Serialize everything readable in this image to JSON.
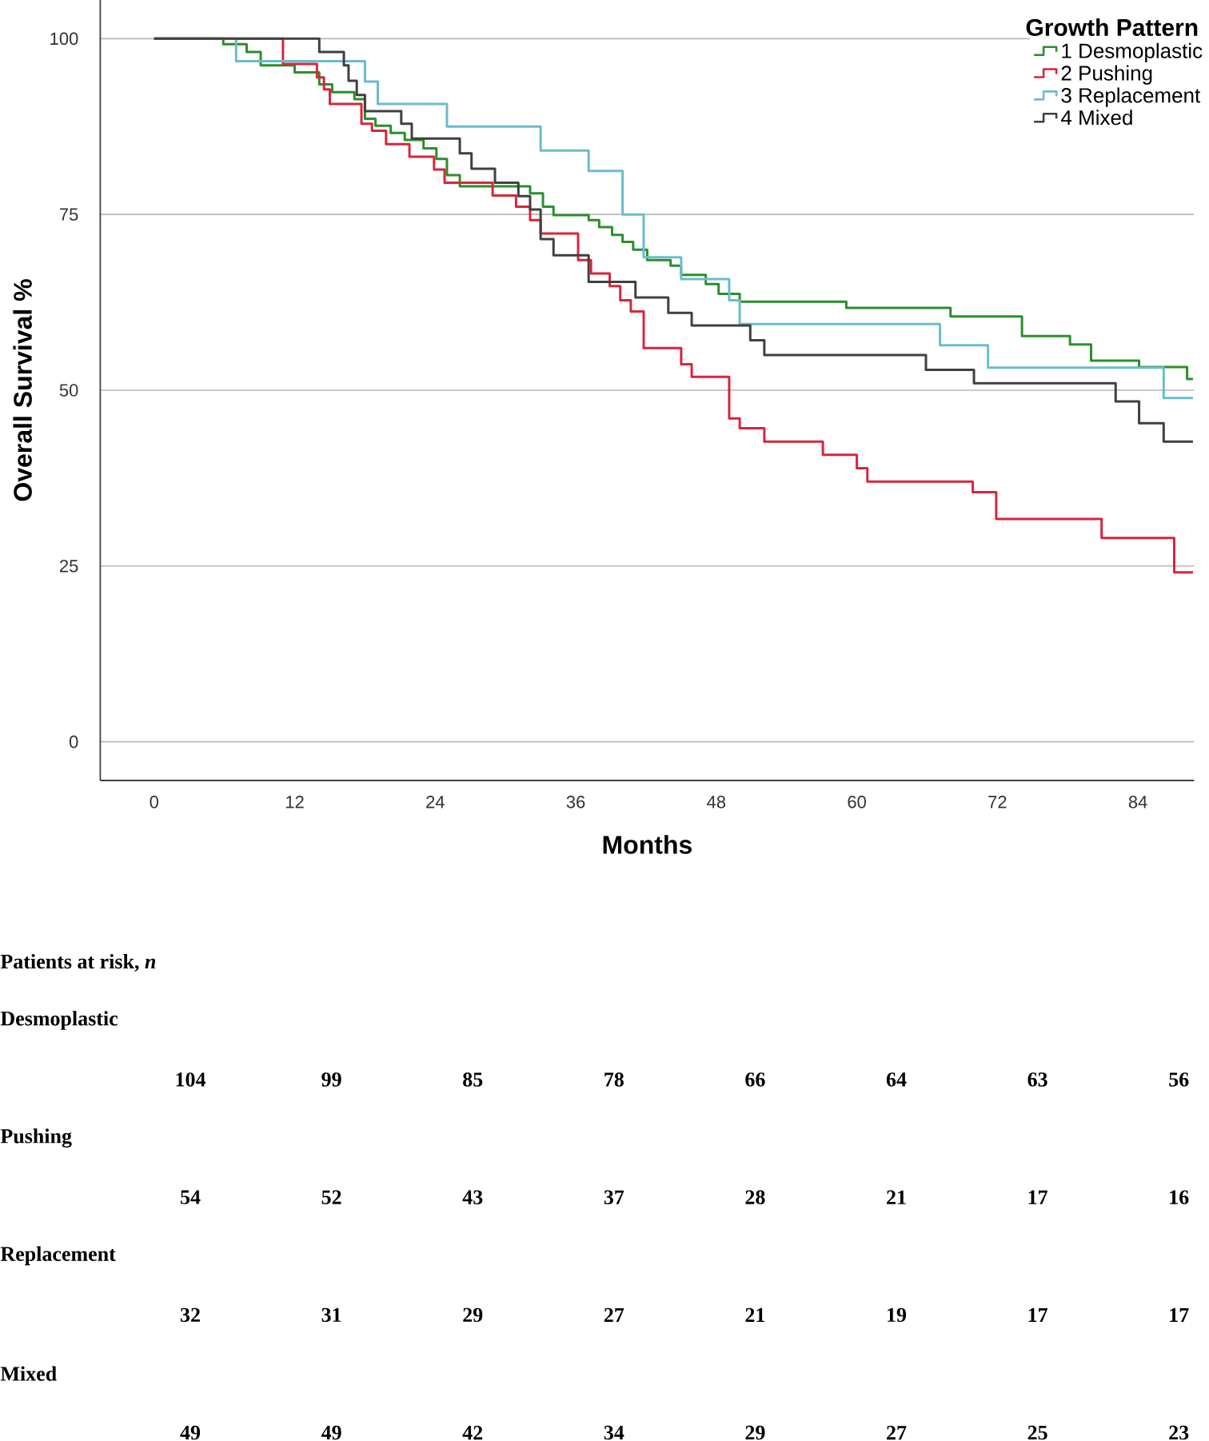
{
  "chart_data": {
    "type": "step",
    "xlabel": "Months",
    "ylabel": "Overall Survival %",
    "legend_title": "Growth Pattern",
    "legend": "top right",
    "grid": "y",
    "marker": "none",
    "line_style": "solid",
    "xlim": [
      -4.6,
      88.8
    ],
    "ylim": [
      -5.5,
      105.5
    ],
    "xticks": [
      0,
      12,
      24,
      36,
      48,
      60,
      72,
      84
    ],
    "yticks": [
      0,
      25,
      50,
      75,
      100
    ],
    "series": [
      {
        "name": "1 Desmoplastic",
        "color": "#2a8f2a",
        "x": [
          0,
          5.9,
          7.9,
          9.1,
          12.0,
          14.1,
          15.2,
          17.1,
          18.0,
          18.9,
          20.2,
          21.4,
          23.0,
          24.1,
          25.0,
          26.1,
          32.1,
          33.2,
          34.1,
          37.1,
          38.0,
          39.1,
          40.0,
          40.9,
          42.1,
          44.1,
          45.0,
          47.1,
          48.2,
          50.0,
          59.1,
          68.0,
          74.1,
          78.2,
          80.0,
          84.1,
          88.2,
          88.7
        ],
        "values": [
          100,
          99.2,
          98.1,
          96.2,
          95.2,
          93.5,
          92.4,
          91.4,
          88.6,
          87.6,
          86.6,
          85.6,
          84.4,
          82.9,
          80.6,
          79.0,
          78.0,
          76.1,
          74.9,
          74.2,
          73.2,
          72.1,
          71.1,
          70.0,
          68.5,
          67.7,
          66.4,
          65.1,
          63.7,
          62.6,
          61.7,
          60.5,
          57.7,
          56.5,
          54.2,
          53.3,
          51.6,
          51.6
        ]
      },
      {
        "name": "2 Pushing",
        "color": "#d7263d",
        "x": [
          0,
          11.0,
          13.9,
          14.5,
          15.0,
          17.7,
          18.6,
          19.8,
          21.8,
          23.9,
          24.8,
          28.9,
          30.9,
          32.1,
          33.0,
          36.2,
          37.3,
          38.9,
          39.8,
          40.7,
          41.8,
          45.0,
          45.9,
          49.1,
          50.0,
          52.1,
          57.1,
          60.0,
          60.9,
          69.9,
          71.9,
          80.9,
          87.1,
          88.7
        ],
        "values": [
          100,
          96.4,
          94.5,
          92.8,
          90.7,
          87.9,
          86.9,
          85.0,
          83.2,
          81.4,
          79.5,
          77.7,
          76.1,
          74.2,
          72.3,
          68.5,
          66.6,
          64.8,
          62.8,
          61.2,
          56.0,
          53.7,
          51.9,
          46.0,
          44.6,
          42.7,
          40.8,
          38.9,
          37.0,
          35.5,
          31.7,
          29.0,
          24.1,
          24.1
        ]
      },
      {
        "name": "3 Replacement",
        "color": "#6bbccc",
        "x": [
          0,
          7.0,
          18.0,
          19.1,
          25.0,
          33.0,
          37.1,
          40.0,
          41.8,
          45.0,
          49.1,
          50.0,
          67.1,
          71.2,
          86.2,
          88.7
        ],
        "values": [
          100,
          96.8,
          93.9,
          90.7,
          87.5,
          84.1,
          81.2,
          75.0,
          68.9,
          65.8,
          62.8,
          59.4,
          56.4,
          53.2,
          48.9,
          48.9
        ]
      },
      {
        "name": "4 Mixed",
        "color": "#404040",
        "x": [
          0,
          14.1,
          16.2,
          16.6,
          17.3,
          18.0,
          21.1,
          22.0,
          26.1,
          27.1,
          29.1,
          31.1,
          32.1,
          33.0,
          34.1,
          37.1,
          41.1,
          43.9,
          45.9,
          50.9,
          52.1,
          65.9,
          70.0,
          82.1,
          84.1,
          86.2,
          88.7
        ],
        "values": [
          100,
          98.1,
          96.2,
          94.0,
          92.0,
          89.7,
          87.9,
          85.8,
          83.7,
          81.5,
          79.5,
          77.6,
          75.7,
          71.5,
          69.2,
          65.4,
          63.2,
          61.0,
          59.2,
          57.1,
          55.0,
          52.9,
          51.0,
          48.4,
          45.3,
          42.7,
          42.7
        ]
      }
    ],
    "annotations": [
      "Patients at risk, *n*",
      "Desmoplastic",
      "104",
      "99",
      "85",
      "78",
      "66",
      "64",
      "63",
      "56",
      "Pushing",
      "54",
      "52",
      "43",
      "37",
      "28",
      "21",
      "17",
      "16",
      "Replacement",
      "32",
      "31",
      "29",
      "27",
      "21",
      "19",
      "17",
      "17",
      "Mixed",
      "49",
      "49",
      "42",
      "34",
      "29",
      "27",
      "25",
      "23"
    ]
  }
}
